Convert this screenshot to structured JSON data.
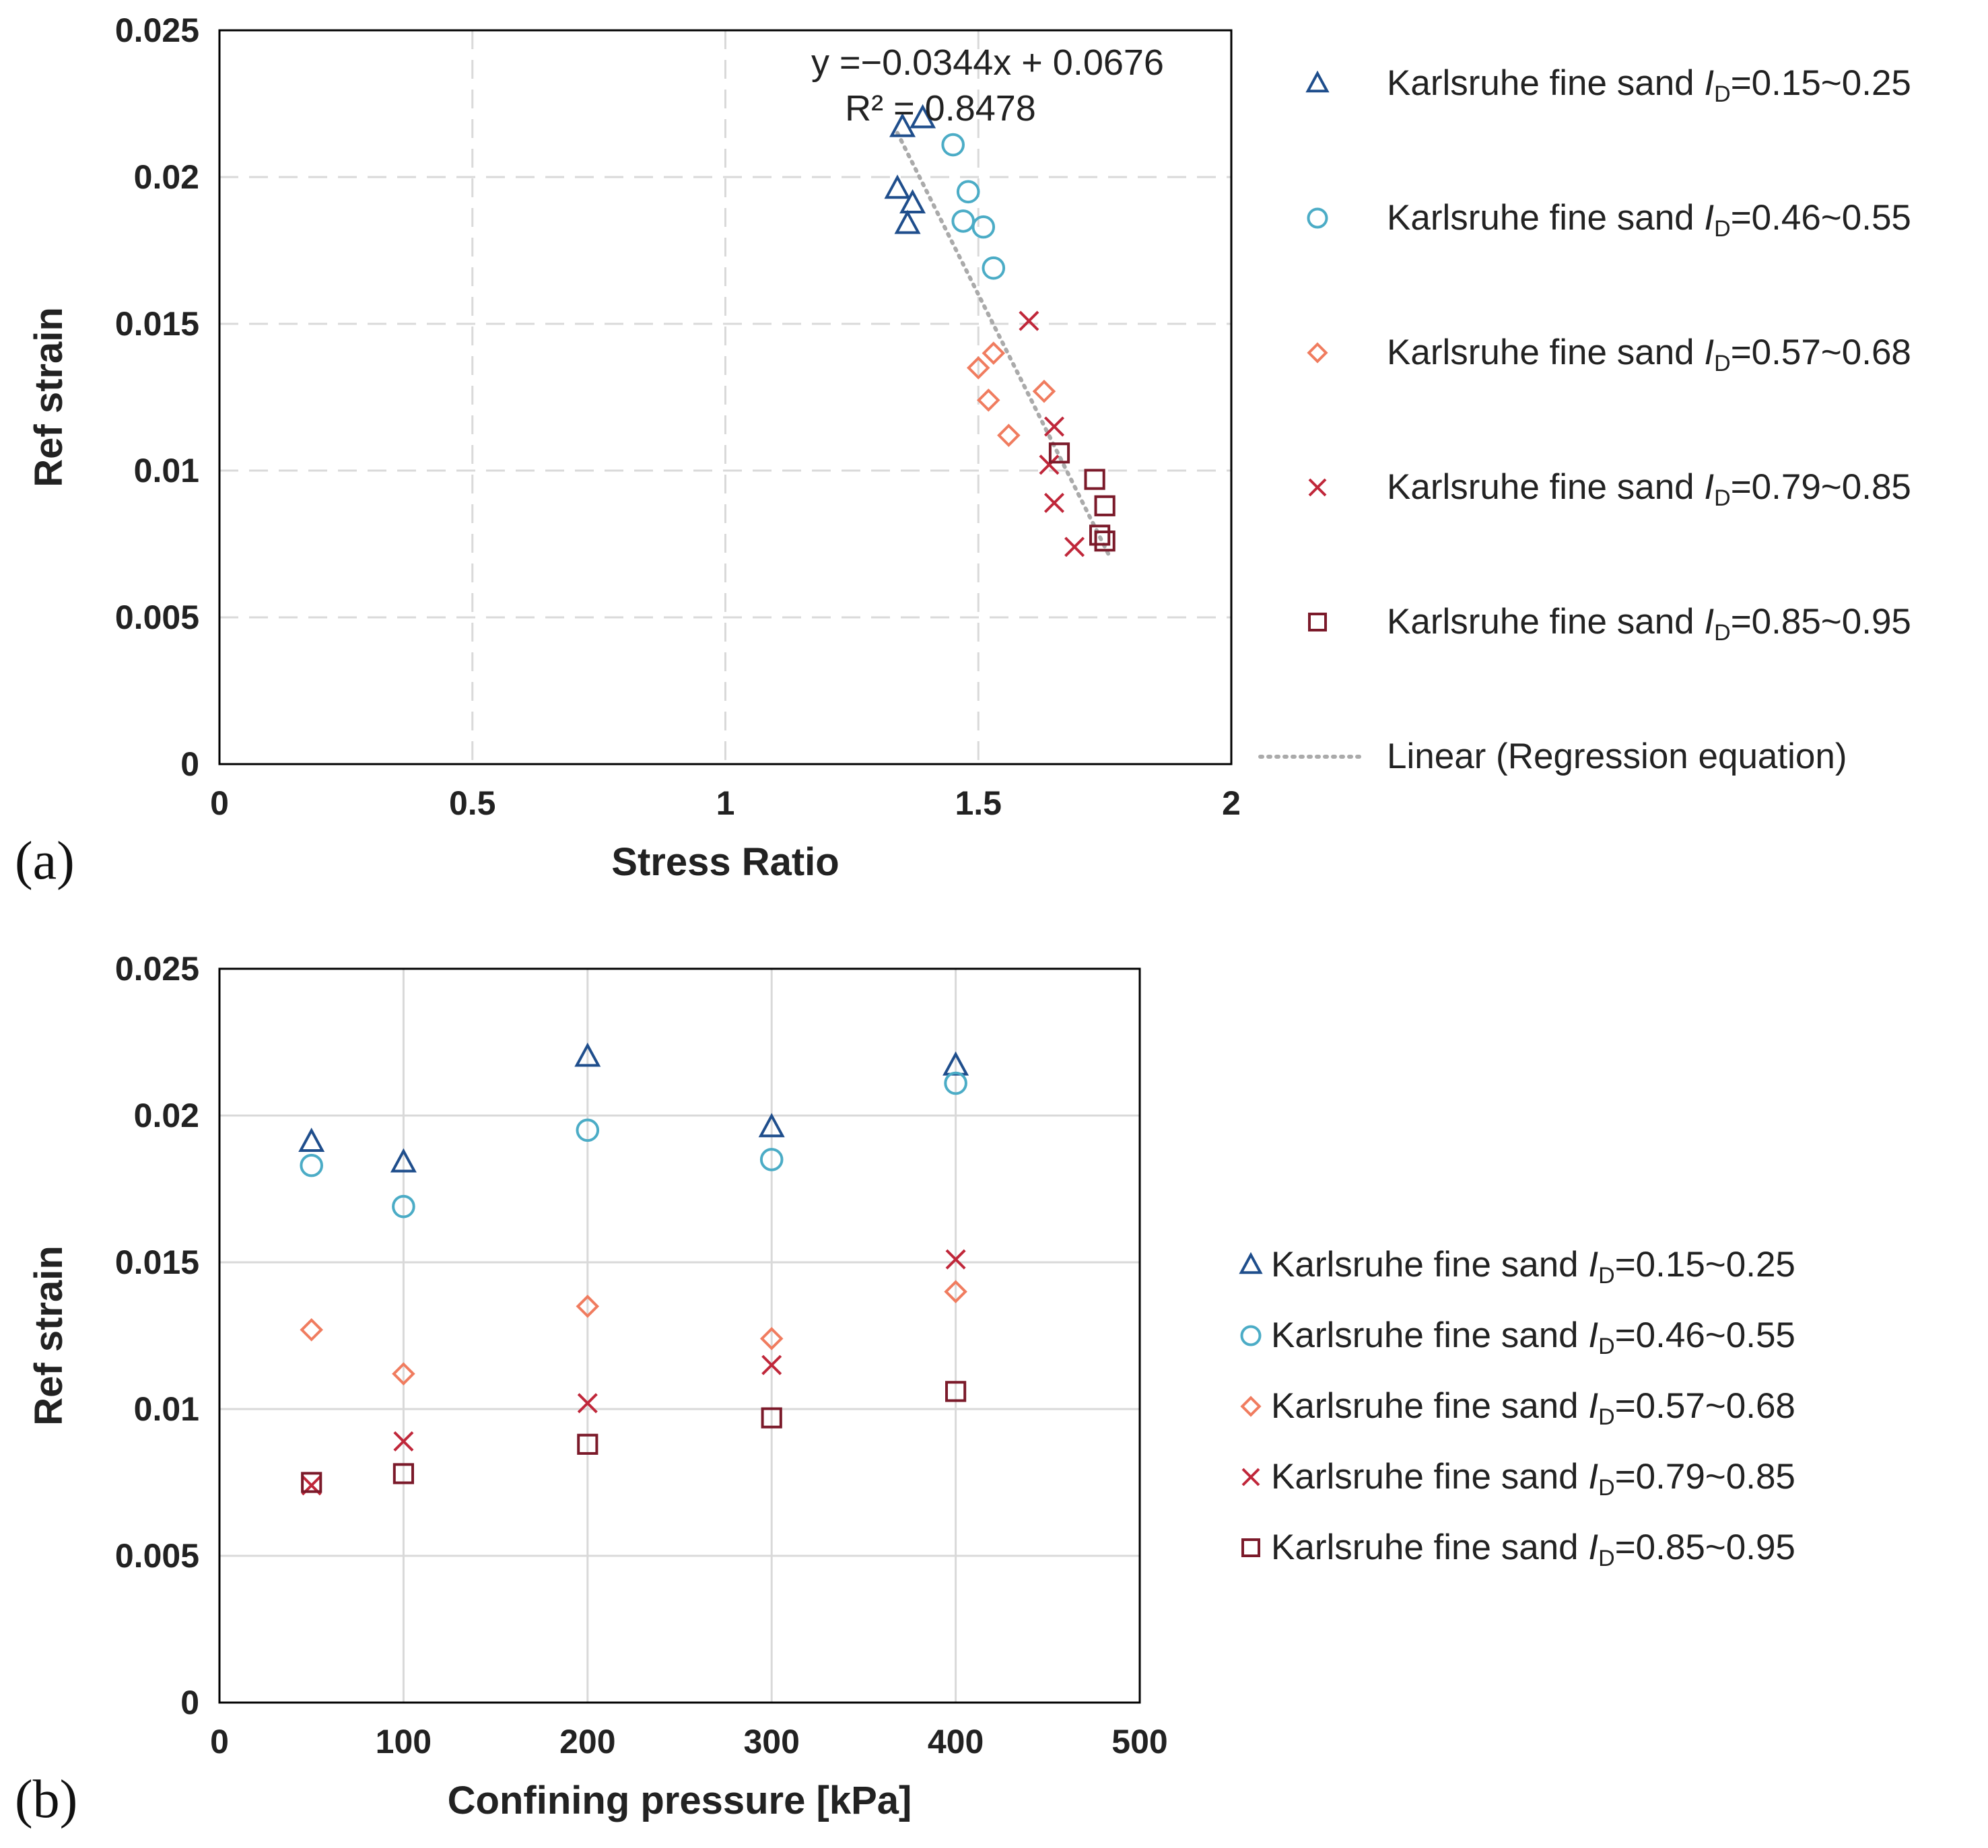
{
  "colors": {
    "s1": "#1f4e8c",
    "s2": "#4bacc6",
    "s3": "#f07c5f",
    "s4": "#c0273a",
    "s5": "#7b1a2a",
    "trend": "#aaaaaa",
    "grid": "#d9d9d9",
    "axis": "#000000"
  },
  "chart_data": [
    {
      "panel_label": "(a)",
      "type": "scatter",
      "xlabel": "Stress Ratio",
      "ylabel": "Ref strain",
      "xlim": [
        0,
        2
      ],
      "ylim": [
        0,
        0.025
      ],
      "xticks": [
        "0",
        "0.5",
        "1",
        "1.5",
        "2"
      ],
      "yticks": [
        "0",
        "0.005",
        "0.01",
        "0.015",
        "0.02",
        "0.025"
      ],
      "grid": "dashed",
      "legend_position": "right",
      "series": [
        {
          "name": "Karlsruhe fine sand ",
          "id_label": "I",
          "id_sub": "D",
          "range": "=0.15~0.25",
          "marker": "triangle",
          "color": "s1",
          "points": [
            [
              1.35,
              0.0217
            ],
            [
              1.39,
              0.022
            ],
            [
              1.34,
              0.0196
            ],
            [
              1.37,
              0.0191
            ],
            [
              1.36,
              0.0184
            ]
          ]
        },
        {
          "name": "Karlsruhe fine sand ",
          "id_label": "I",
          "id_sub": "D",
          "range": "=0.46~0.55",
          "marker": "circle",
          "color": "s2",
          "points": [
            [
              1.45,
              0.0211
            ],
            [
              1.48,
              0.0195
            ],
            [
              1.47,
              0.0185
            ],
            [
              1.51,
              0.0183
            ],
            [
              1.53,
              0.0169
            ]
          ]
        },
        {
          "name": "Karlsruhe fine sand ",
          "id_label": "I",
          "id_sub": "D",
          "range": "=0.57~0.68",
          "marker": "diamond",
          "color": "s3",
          "points": [
            [
              1.53,
              0.014
            ],
            [
              1.5,
              0.0135
            ],
            [
              1.63,
              0.0127
            ],
            [
              1.52,
              0.0124
            ],
            [
              1.56,
              0.0112
            ]
          ]
        },
        {
          "name": "Karlsruhe fine sand ",
          "id_label": "I",
          "id_sub": "D",
          "range": "=0.79~0.85",
          "marker": "cross",
          "color": "s4",
          "points": [
            [
              1.6,
              0.0151
            ],
            [
              1.65,
              0.0115
            ],
            [
              1.64,
              0.0102
            ],
            [
              1.65,
              0.0089
            ],
            [
              1.69,
              0.0074
            ]
          ]
        },
        {
          "name": "Karlsruhe fine sand ",
          "id_label": "I",
          "id_sub": "D",
          "range": "=0.85~0.95",
          "marker": "square",
          "color": "s5",
          "points": [
            [
              1.66,
              0.0106
            ],
            [
              1.73,
              0.0097
            ],
            [
              1.75,
              0.0088
            ],
            [
              1.74,
              0.0078
            ],
            [
              1.75,
              0.0076
            ]
          ]
        }
      ],
      "trendline": {
        "legend": "Linear (Regression equation)",
        "equation": "y =−0.0344x + 0.0676",
        "r2": "R² = 0.8478",
        "slope": -0.0344,
        "intercept": 0.0676,
        "x_range": [
          1.34,
          1.76
        ]
      }
    },
    {
      "panel_label": "(b)",
      "type": "scatter",
      "xlabel": "Confining pressure [kPa]",
      "ylabel": "Ref strain",
      "xlim": [
        0,
        500
      ],
      "ylim": [
        0,
        0.025
      ],
      "xticks": [
        "0",
        "100",
        "200",
        "300",
        "400",
        "500"
      ],
      "yticks": [
        "0",
        "0.005",
        "0.01",
        "0.015",
        "0.02",
        "0.025"
      ],
      "grid": "solid",
      "legend_position": "right",
      "series": [
        {
          "name": "Karlsruhe fine sand ",
          "id_label": "I",
          "id_sub": "D",
          "range": "=0.15~0.25",
          "marker": "triangle",
          "color": "s1",
          "points": [
            [
              50,
              0.0191
            ],
            [
              100,
              0.0184
            ],
            [
              200,
              0.022
            ],
            [
              300,
              0.0196
            ],
            [
              400,
              0.0217
            ]
          ]
        },
        {
          "name": "Karlsruhe fine sand ",
          "id_label": "I",
          "id_sub": "D",
          "range": "=0.46~0.55",
          "marker": "circle",
          "color": "s2",
          "points": [
            [
              50,
              0.0183
            ],
            [
              100,
              0.0169
            ],
            [
              200,
              0.0195
            ],
            [
              300,
              0.0185
            ],
            [
              400,
              0.0211
            ]
          ]
        },
        {
          "name": "Karlsruhe fine sand ",
          "id_label": "I",
          "id_sub": "D",
          "range": "=0.57~0.68",
          "marker": "diamond",
          "color": "s3",
          "points": [
            [
              50,
              0.0127
            ],
            [
              100,
              0.0112
            ],
            [
              200,
              0.0135
            ],
            [
              300,
              0.0124
            ],
            [
              400,
              0.014
            ]
          ]
        },
        {
          "name": "Karlsruhe fine sand ",
          "id_label": "I",
          "id_sub": "D",
          "range": "=0.79~0.85",
          "marker": "cross",
          "color": "s4",
          "points": [
            [
              50,
              0.0074
            ],
            [
              100,
              0.0089
            ],
            [
              200,
              0.0102
            ],
            [
              300,
              0.0115
            ],
            [
              400,
              0.0151
            ]
          ]
        },
        {
          "name": "Karlsruhe fine sand ",
          "id_label": "I",
          "id_sub": "D",
          "range": "=0.85~0.95",
          "marker": "square",
          "color": "s5",
          "points": [
            [
              50,
              0.0075
            ],
            [
              100,
              0.0078
            ],
            [
              200,
              0.0088
            ],
            [
              300,
              0.0097
            ],
            [
              400,
              0.0106
            ]
          ]
        }
      ]
    }
  ]
}
